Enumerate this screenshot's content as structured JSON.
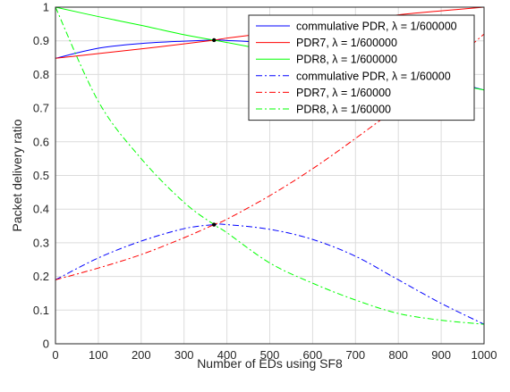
{
  "chart_data": {
    "type": "line",
    "xlabel": "Number of EDs using SF8",
    "ylabel": "Packet delivery ratio",
    "xlim": [
      0,
      1000
    ],
    "ylim": [
      0,
      1
    ],
    "xticks": [
      "0",
      "100",
      "200",
      "300",
      "400",
      "500",
      "600",
      "700",
      "800",
      "900",
      "1000"
    ],
    "yticks": [
      "0",
      "0.1",
      "0.2",
      "0.3",
      "0.4",
      "0.5",
      "0.6",
      "0.7",
      "0.8",
      "0.9",
      "1"
    ],
    "grid": true,
    "legend": "top-right",
    "x": [
      0,
      100,
      200,
      300,
      370,
      400,
      500,
      600,
      700,
      800,
      900,
      1000
    ],
    "series": [
      {
        "name": "commulative PDR, λ = 1/600000",
        "color": "#0000ff",
        "style": "solid",
        "values": [
          0.848,
          0.878,
          0.892,
          0.899,
          0.902,
          0.901,
          0.893,
          0.871,
          0.85,
          0.817,
          0.787,
          0.754
        ]
      },
      {
        "name": "PDR7, λ = 1/600000",
        "color": "#ff0000",
        "style": "solid",
        "values": [
          0.848,
          0.862,
          0.876,
          0.891,
          0.902,
          0.908,
          0.924,
          0.941,
          0.959,
          0.977,
          0.989,
          1.0
        ]
      },
      {
        "name": "PDR8, λ = 1/600000",
        "color": "#00ff00",
        "style": "solid",
        "values": [
          1.0,
          0.972,
          0.946,
          0.918,
          0.902,
          0.895,
          0.871,
          0.846,
          0.822,
          0.8,
          0.778,
          0.754
        ]
      },
      {
        "name": "commulative PDR, λ = 1/60000",
        "color": "#0000ff",
        "style": "dashdot",
        "values": [
          0.19,
          0.255,
          0.305,
          0.342,
          0.354,
          0.354,
          0.34,
          0.31,
          0.26,
          0.19,
          0.12,
          0.058
        ]
      },
      {
        "name": "PDR7, λ = 1/60000",
        "color": "#ff0000",
        "style": "dashdot",
        "values": [
          0.19,
          0.225,
          0.265,
          0.315,
          0.354,
          0.37,
          0.44,
          0.52,
          0.61,
          0.705,
          0.81,
          0.92
        ]
      },
      {
        "name": "PDR8, λ = 1/60000",
        "color": "#00ff00",
        "style": "dashdot",
        "values": [
          1.0,
          0.72,
          0.55,
          0.42,
          0.354,
          0.33,
          0.24,
          0.18,
          0.13,
          0.09,
          0.07,
          0.058
        ]
      }
    ],
    "markers": [
      {
        "x": 370,
        "y": 0.902
      },
      {
        "x": 370,
        "y": 0.354
      }
    ]
  }
}
